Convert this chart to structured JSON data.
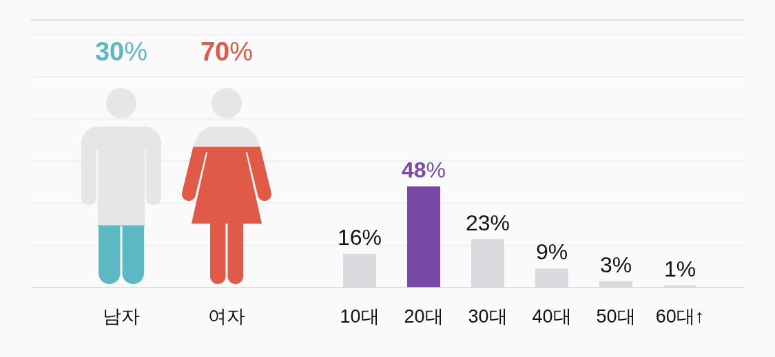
{
  "chart_data": [
    {
      "type": "other",
      "categories": [
        "남자",
        "여자"
      ],
      "values": [
        30,
        70
      ],
      "colors": [
        "#5cb8c2",
        "#e05a47"
      ],
      "value_labels": [
        "30%",
        "70%"
      ]
    },
    {
      "type": "bar",
      "categories": [
        "10대",
        "20대",
        "30대",
        "40대",
        "50대",
        "60대↑"
      ],
      "values": [
        16,
        48,
        23,
        9,
        3,
        1
      ],
      "colors": [
        "#d8dade",
        "#7849a8",
        "#d8dade",
        "#d8dade",
        "#d8dade",
        "#d8dade"
      ],
      "value_labels": [
        "16%",
        "48%",
        "23%",
        "9%",
        "3%",
        "1%"
      ],
      "ylim": [
        0,
        127
      ],
      "yticks": [
        {
          "value": 20,
          "label": null
        },
        {
          "value": 40,
          "label": null
        },
        {
          "value": 60,
          "label": null
        },
        {
          "value": 80,
          "label": null
        },
        {
          "value": 100,
          "label": null
        },
        {
          "value": 120,
          "label": null
        }
      ],
      "grid": "y",
      "tick_labels": "x"
    }
  ]
}
